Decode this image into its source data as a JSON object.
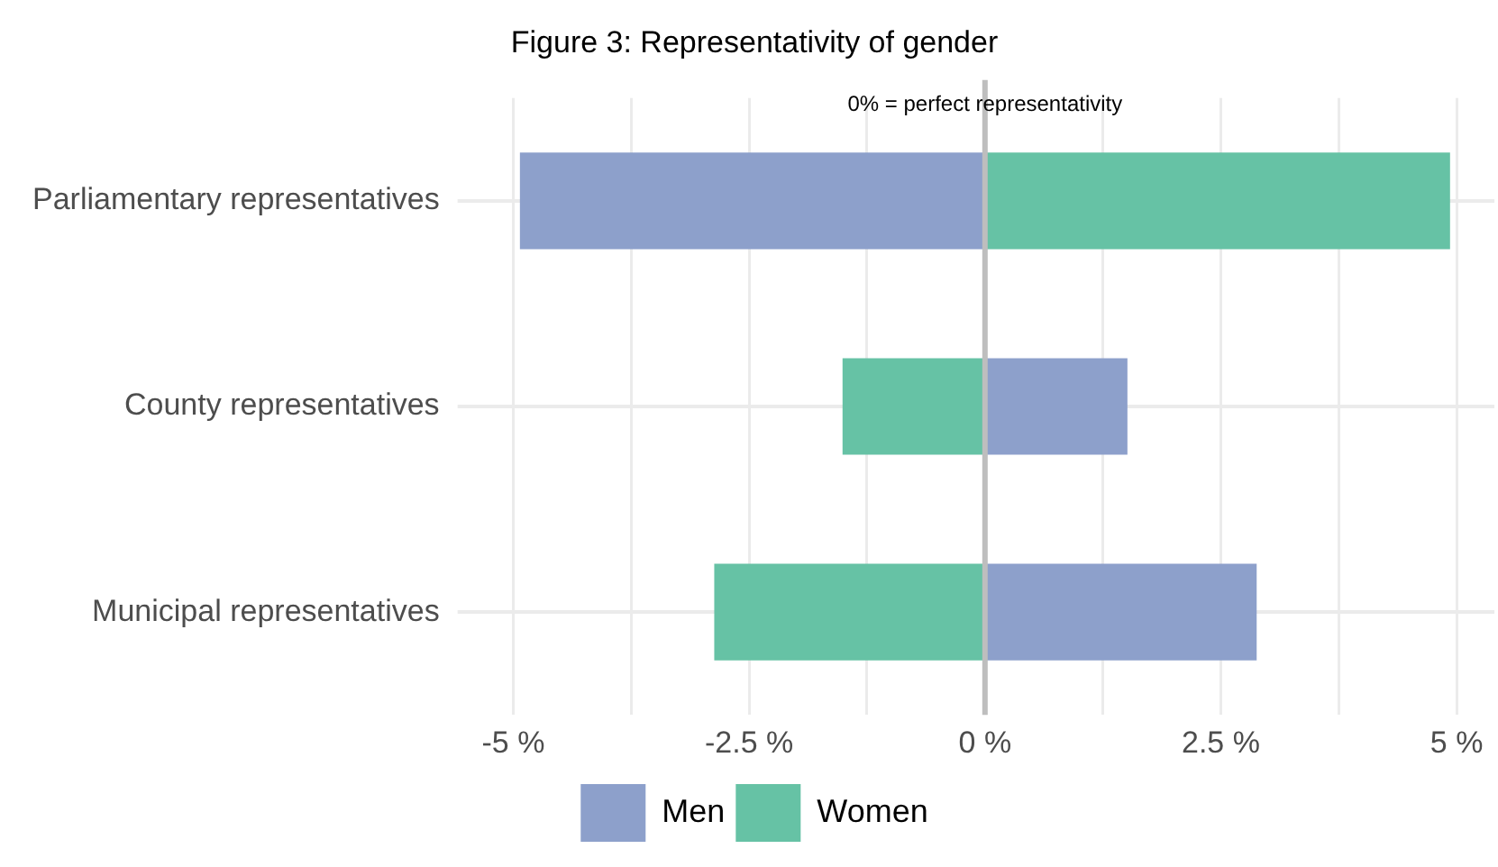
{
  "chart_data": {
    "type": "bar",
    "orientation": "horizontal",
    "stacked": true,
    "title": "Figure 3: Representativity of gender",
    "categories": [
      "Parliamentary representatives",
      "County representatives",
      "Municipal representatives"
    ],
    "series": [
      {
        "name": "Men",
        "color": "#8da0cb",
        "values": [
          -4.93,
          1.51,
          2.88
        ]
      },
      {
        "name": "Women",
        "color": "#66c2a5",
        "values": [
          4.93,
          -1.51,
          -2.87
        ]
      }
    ],
    "xlim": [
      -5.4,
      5.4
    ],
    "xticks": [
      {
        "value": -5,
        "label": "-5 %"
      },
      {
        "value": -3.75,
        "label": null
      },
      {
        "value": -2.5,
        "label": "-2.5 %"
      },
      {
        "value": -1.25,
        "label": null
      },
      {
        "value": 0,
        "label": "0 %"
      },
      {
        "value": 1.25,
        "label": null
      },
      {
        "value": 2.5,
        "label": "2.5 %"
      },
      {
        "value": 3.75,
        "label": null
      },
      {
        "value": 5,
        "label": "5 %"
      }
    ],
    "ref_lines": [
      {
        "axis": "x",
        "value": 0,
        "label": "0% = perfect representativity",
        "color": "#bebebe"
      }
    ],
    "grid": true,
    "legend": "bottom"
  }
}
